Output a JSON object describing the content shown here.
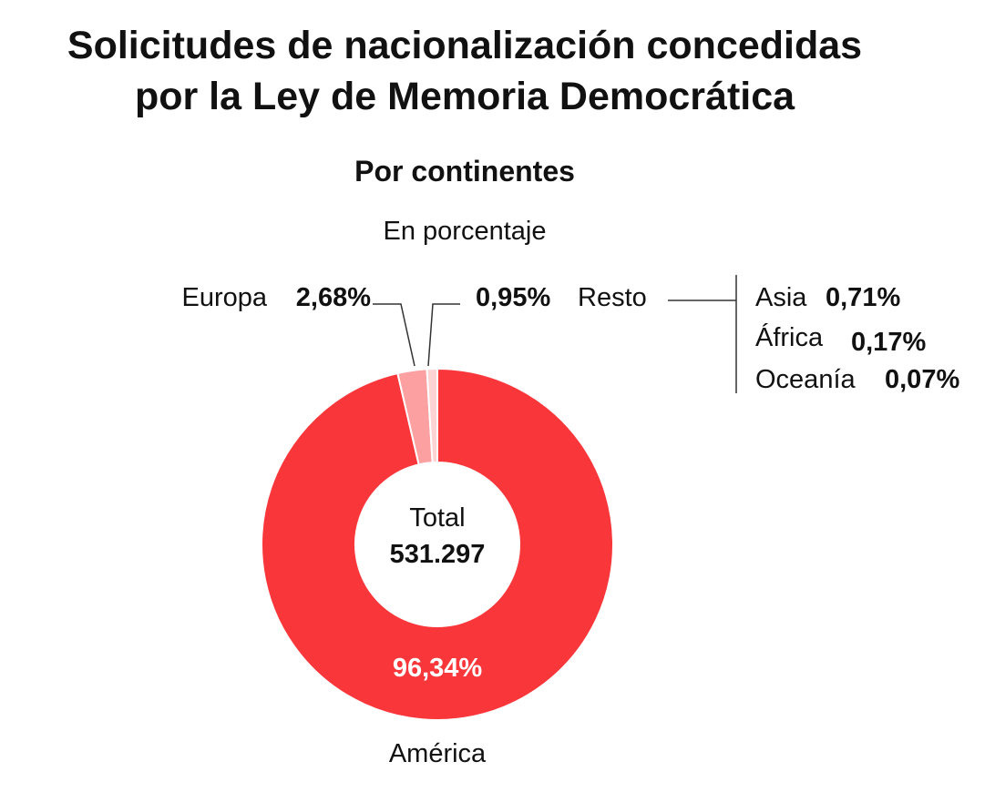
{
  "title_line1": "Solicitudes de nacionalización concedidas",
  "title_line2": "por la Ley de Memoria Democrática",
  "subtitle": "Por continentes",
  "unit": "En porcentaje",
  "center": {
    "label": "Total",
    "value": "531.297"
  },
  "colors": {
    "america": "#f9373b",
    "europa": "#fca0a1",
    "resto": "#fdd3d4",
    "lines": "#333333"
  },
  "chart_data": {
    "type": "pie",
    "title": "Solicitudes de nacionalización concedidas por la Ley de Memoria Democrática",
    "subtitle": "Por continentes",
    "unit": "En porcentaje",
    "total": 531297,
    "slices": [
      {
        "name": "América",
        "value": 96.34,
        "label": "96,34%"
      },
      {
        "name": "Europa",
        "value": 2.68,
        "label": "2,68%"
      },
      {
        "name": "Resto",
        "value": 0.95,
        "label": "0,95%"
      }
    ],
    "resto_breakdown": [
      {
        "name": "Asia",
        "value": 0.71,
        "label": "0,71%"
      },
      {
        "name": "África",
        "value": 0.17,
        "label": "0,17%"
      },
      {
        "name": "Oceanía",
        "value": 0.07,
        "label": "0,07%"
      }
    ]
  }
}
